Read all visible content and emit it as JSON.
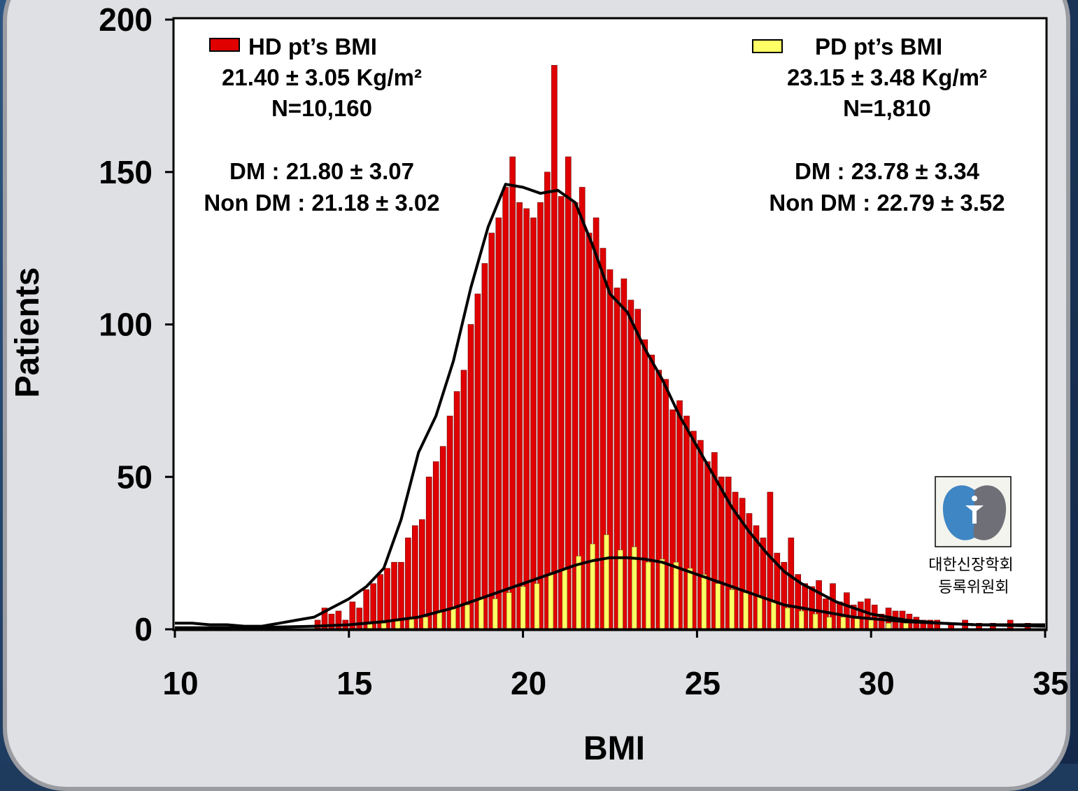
{
  "chart_data": {
    "type": "bar",
    "ylabel": "Patients",
    "xlabel": "BMI",
    "xlim": [
      10,
      35
    ],
    "ylim": [
      0,
      200
    ],
    "x_ticks": [
      "10",
      "15",
      "20",
      "25",
      "30",
      "35"
    ],
    "y_ticks": [
      "0",
      "50",
      "100",
      "150",
      "200"
    ],
    "legend_placement": "top-left and top-right",
    "series": [
      {
        "name": "HD pt’s BMI",
        "color": "#e00000",
        "stats": {
          "mean_line": "21.40 ± 3.05 Kg/m²",
          "n_line": "N=10,160",
          "dm_line": "DM : 21.80 ± 3.07",
          "nondm_line": "Non DM : 21.18 ± 3.02"
        },
        "values": [
          [
            14.1,
            3
          ],
          [
            14.3,
            7
          ],
          [
            14.5,
            5
          ],
          [
            14.7,
            6
          ],
          [
            14.9,
            3
          ],
          [
            15.1,
            9
          ],
          [
            15.3,
            7
          ],
          [
            15.5,
            13
          ],
          [
            15.7,
            15
          ],
          [
            15.9,
            18
          ],
          [
            16.1,
            20
          ],
          [
            16.3,
            22
          ],
          [
            16.5,
            22
          ],
          [
            16.7,
            30
          ],
          [
            16.9,
            34
          ],
          [
            17.1,
            36
          ],
          [
            17.3,
            50
          ],
          [
            17.5,
            55
          ],
          [
            17.7,
            60
          ],
          [
            17.9,
            70
          ],
          [
            18.1,
            78
          ],
          [
            18.3,
            85
          ],
          [
            18.5,
            100
          ],
          [
            18.7,
            110
          ],
          [
            18.9,
            120
          ],
          [
            19.1,
            130
          ],
          [
            19.3,
            135
          ],
          [
            19.5,
            145
          ],
          [
            19.7,
            155
          ],
          [
            19.9,
            140
          ],
          [
            20.1,
            138
          ],
          [
            20.3,
            135
          ],
          [
            20.5,
            140
          ],
          [
            20.7,
            150
          ],
          [
            20.9,
            185
          ],
          [
            21.1,
            142
          ],
          [
            21.3,
            155
          ],
          [
            21.5,
            140
          ],
          [
            21.7,
            145
          ],
          [
            21.9,
            130
          ],
          [
            22.1,
            135
          ],
          [
            22.3,
            125
          ],
          [
            22.5,
            118
          ],
          [
            22.7,
            112
          ],
          [
            22.9,
            115
          ],
          [
            23.1,
            108
          ],
          [
            23.3,
            105
          ],
          [
            23.5,
            95
          ],
          [
            23.7,
            90
          ],
          [
            23.9,
            85
          ],
          [
            24.1,
            82
          ],
          [
            24.3,
            72
          ],
          [
            24.5,
            75
          ],
          [
            24.7,
            70
          ],
          [
            24.9,
            65
          ],
          [
            25.1,
            62
          ],
          [
            25.3,
            55
          ],
          [
            25.5,
            58
          ],
          [
            25.7,
            50
          ],
          [
            25.9,
            50
          ],
          [
            26.1,
            45
          ],
          [
            26.3,
            43
          ],
          [
            26.5,
            38
          ],
          [
            26.7,
            34
          ],
          [
            26.9,
            30
          ],
          [
            27.1,
            45
          ],
          [
            27.3,
            25
          ],
          [
            27.5,
            22
          ],
          [
            27.7,
            30
          ],
          [
            27.9,
            18
          ],
          [
            28.1,
            15
          ],
          [
            28.3,
            14
          ],
          [
            28.5,
            16
          ],
          [
            28.7,
            10
          ],
          [
            28.9,
            15
          ],
          [
            29.1,
            9
          ],
          [
            29.3,
            12
          ],
          [
            29.5,
            8
          ],
          [
            29.7,
            9
          ],
          [
            29.9,
            10
          ],
          [
            30.1,
            8
          ],
          [
            30.3,
            5
          ],
          [
            30.5,
            7
          ],
          [
            30.7,
            6
          ],
          [
            30.9,
            6
          ],
          [
            31.1,
            5
          ],
          [
            31.3,
            4
          ],
          [
            31.5,
            3
          ],
          [
            31.7,
            3
          ],
          [
            31.9,
            3
          ],
          [
            32.3,
            2
          ],
          [
            32.7,
            3
          ],
          [
            33.1,
            2
          ],
          [
            33.5,
            2
          ],
          [
            34.0,
            3
          ],
          [
            34.5,
            2
          ]
        ],
        "fit_curve": [
          [
            10,
            2
          ],
          [
            10.5,
            2
          ],
          [
            11,
            1.5
          ],
          [
            11.5,
            1.5
          ],
          [
            12,
            1
          ],
          [
            12.5,
            1
          ],
          [
            13,
            2
          ],
          [
            13.5,
            3
          ],
          [
            14,
            4
          ],
          [
            14.5,
            7
          ],
          [
            15,
            10
          ],
          [
            15.5,
            14
          ],
          [
            16,
            20
          ],
          [
            16.5,
            36
          ],
          [
            17,
            58
          ],
          [
            17.5,
            70
          ],
          [
            18,
            88
          ],
          [
            18.5,
            112
          ],
          [
            19,
            132
          ],
          [
            19.5,
            146
          ],
          [
            20,
            145
          ],
          [
            20.5,
            143
          ],
          [
            21,
            144
          ],
          [
            21.5,
            140
          ],
          [
            22,
            126
          ],
          [
            22.5,
            110
          ],
          [
            23,
            104
          ],
          [
            23.5,
            92
          ],
          [
            24,
            82
          ],
          [
            24.5,
            70
          ],
          [
            25,
            60
          ],
          [
            25.5,
            50
          ],
          [
            26,
            40
          ],
          [
            26.5,
            32
          ],
          [
            27,
            25
          ],
          [
            27.5,
            19
          ],
          [
            28,
            15
          ],
          [
            28.5,
            12
          ],
          [
            29,
            9
          ],
          [
            29.5,
            7
          ],
          [
            30,
            5
          ],
          [
            30.5,
            4
          ],
          [
            31,
            3
          ],
          [
            31.5,
            2.5
          ],
          [
            32,
            2
          ],
          [
            33,
            1.5
          ],
          [
            34,
            1.5
          ],
          [
            35,
            1.5
          ]
        ]
      },
      {
        "name": "PD pt’s BMI",
        "color": "#ffff66",
        "stats": {
          "mean_line": "23.15 ± 3.48 Kg/m²",
          "n_line": "N=1,810",
          "dm_line": "DM : 23.78 ± 3.34",
          "nondm_line": "Non DM : 22.79 ± 3.52"
        },
        "values": [
          [
            15.6,
            2
          ],
          [
            16.0,
            2
          ],
          [
            16.4,
            3
          ],
          [
            16.8,
            4
          ],
          [
            17.2,
            4
          ],
          [
            17.6,
            6
          ],
          [
            18.0,
            7
          ],
          [
            18.4,
            8
          ],
          [
            18.8,
            10
          ],
          [
            19.2,
            10
          ],
          [
            19.6,
            12
          ],
          [
            20.0,
            14
          ],
          [
            20.4,
            15
          ],
          [
            20.8,
            18
          ],
          [
            21.2,
            20
          ],
          [
            21.6,
            24
          ],
          [
            22.0,
            28
          ],
          [
            22.4,
            31
          ],
          [
            22.8,
            26
          ],
          [
            23.2,
            27
          ],
          [
            23.6,
            22
          ],
          [
            24.0,
            23
          ],
          [
            24.4,
            22
          ],
          [
            24.8,
            20
          ],
          [
            25.2,
            18
          ],
          [
            25.6,
            15
          ],
          [
            26.0,
            13
          ],
          [
            26.4,
            12
          ],
          [
            26.8,
            11
          ],
          [
            27.2,
            9
          ],
          [
            27.6,
            7
          ],
          [
            28.0,
            6
          ],
          [
            28.4,
            5
          ],
          [
            28.8,
            4
          ],
          [
            29.2,
            4
          ],
          [
            29.6,
            4
          ],
          [
            30.0,
            3
          ],
          [
            30.5,
            2
          ],
          [
            31.0,
            2
          ]
        ],
        "fit_curve": [
          [
            10,
            0.5
          ],
          [
            12,
            0.5
          ],
          [
            14,
            1
          ],
          [
            15,
            1.5
          ],
          [
            16,
            2.5
          ],
          [
            17,
            4
          ],
          [
            18,
            7
          ],
          [
            18.5,
            9
          ],
          [
            19,
            11
          ],
          [
            19.5,
            13
          ],
          [
            20,
            15
          ],
          [
            20.5,
            17
          ],
          [
            21,
            19
          ],
          [
            21.5,
            21
          ],
          [
            22,
            22.5
          ],
          [
            22.5,
            23.5
          ],
          [
            23,
            23.5
          ],
          [
            23.5,
            23
          ],
          [
            24,
            22
          ],
          [
            24.5,
            20
          ],
          [
            25,
            18
          ],
          [
            25.5,
            16
          ],
          [
            26,
            14
          ],
          [
            26.5,
            12
          ],
          [
            27,
            10
          ],
          [
            27.5,
            8
          ],
          [
            28,
            7
          ],
          [
            28.5,
            6
          ],
          [
            29,
            5
          ],
          [
            29.5,
            4
          ],
          [
            30,
            3.5
          ],
          [
            31,
            2.5
          ],
          [
            32,
            2
          ],
          [
            33,
            1.5
          ],
          [
            35,
            1
          ]
        ]
      }
    ]
  },
  "logo": {
    "org_line1": "대한신장학회",
    "org_line2": "등록위원회"
  }
}
